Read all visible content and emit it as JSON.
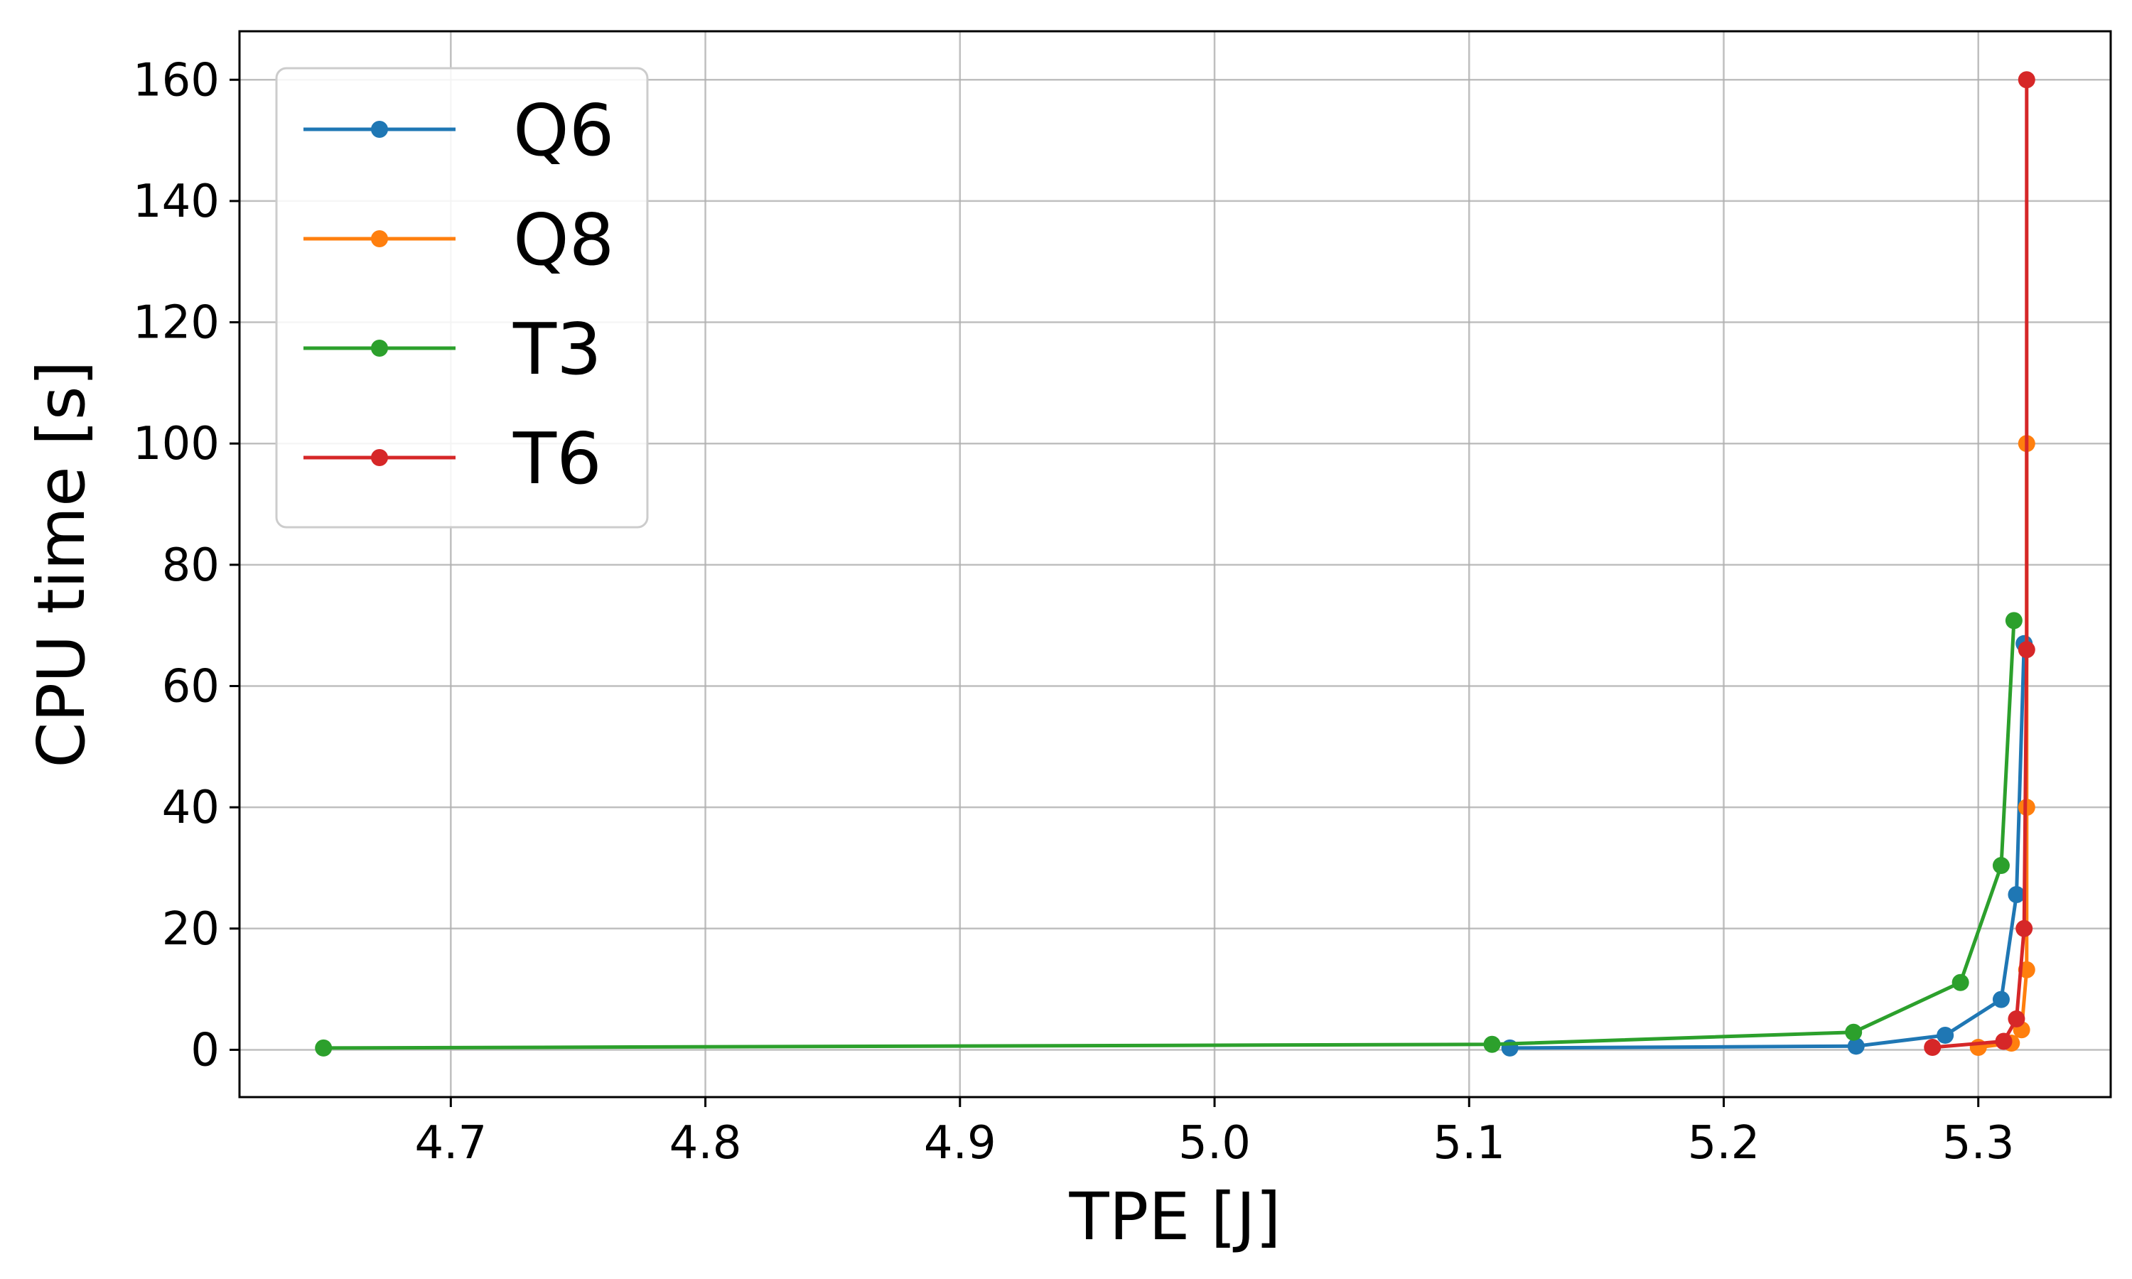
{
  "chart_data": {
    "type": "line",
    "title": "",
    "xlabel": "TPE [J]",
    "ylabel": "CPU time [s]",
    "xlim": [
      4.617,
      5.352
    ],
    "ylim": [
      -7.8,
      168
    ],
    "grid": true,
    "legend_position": "top-left",
    "x_ticks": [
      4.7,
      4.8,
      4.9,
      5.0,
      5.1,
      5.2,
      5.3
    ],
    "x_tick_labels": [
      "4.7",
      "4.8",
      "4.9",
      "5.0",
      "5.1",
      "5.2",
      "5.3"
    ],
    "y_ticks": [
      0,
      20,
      40,
      60,
      80,
      100,
      120,
      140,
      160
    ],
    "y_tick_labels": [
      "0",
      "20",
      "40",
      "60",
      "80",
      "100",
      "120",
      "140",
      "160"
    ],
    "series": [
      {
        "name": "Q6",
        "color": "#1f77b4",
        "points": [
          [
            5.116,
            0.3
          ],
          [
            5.252,
            0.6
          ],
          [
            5.287,
            2.4
          ],
          [
            5.309,
            8.3
          ],
          [
            5.315,
            25.6
          ],
          [
            5.318,
            67.0
          ]
        ]
      },
      {
        "name": "Q8",
        "color": "#ff7f0e",
        "points": [
          [
            5.3,
            0.4
          ],
          [
            5.313,
            1.1
          ],
          [
            5.317,
            3.3
          ],
          [
            5.319,
            13.2
          ],
          [
            5.319,
            40.0
          ],
          [
            5.319,
            100.0
          ]
        ]
      },
      {
        "name": "T3",
        "color": "#2ca02c",
        "points": [
          [
            4.65,
            0.3
          ],
          [
            5.109,
            0.9
          ],
          [
            5.251,
            2.9
          ],
          [
            5.293,
            11.1
          ],
          [
            5.309,
            30.4
          ],
          [
            5.314,
            70.8
          ]
        ]
      },
      {
        "name": "T6",
        "color": "#d62728",
        "points": [
          [
            5.282,
            0.4
          ],
          [
            5.31,
            1.4
          ],
          [
            5.315,
            5.1
          ],
          [
            5.318,
            20.0
          ],
          [
            5.319,
            66.0
          ],
          [
            5.319,
            160.0
          ]
        ]
      }
    ]
  }
}
